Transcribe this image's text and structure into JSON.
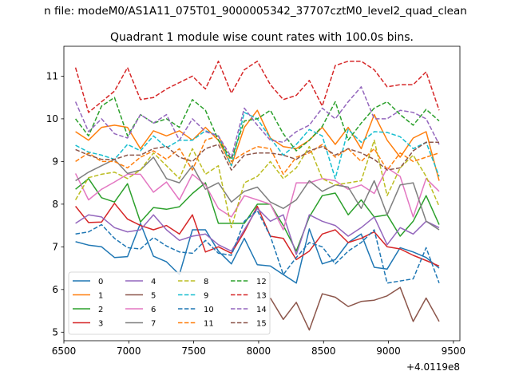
{
  "figure": {
    "suptitle": "n file: modeM0/AS1A11_075T01_9000005342_37707cztM0_level2_quad_clean",
    "offset_label": "+4.0119e8"
  },
  "chart_data": {
    "type": "line",
    "title": "Quadrant 1 module wise count rates with 100.0s bins.",
    "xlabel": "",
    "ylabel": "",
    "xlim": [
      6500,
      9550
    ],
    "ylim": [
      4.8,
      11.7
    ],
    "x_offset": 401190000,
    "xticks": [
      6500,
      7000,
      7500,
      8000,
      8500,
      9000,
      9500
    ],
    "yticks": [
      5,
      6,
      7,
      8,
      9,
      10,
      11
    ],
    "grid": false,
    "legend": {
      "position": "lower-left",
      "columns": 4
    },
    "x": [
      6590,
      6690,
      6790,
      6890,
      6990,
      7090,
      7190,
      7290,
      7390,
      7490,
      7590,
      7690,
      7790,
      7890,
      7990,
      8090,
      8190,
      8290,
      8390,
      8490,
      8590,
      8690,
      8790,
      8890,
      8990,
      9090,
      9190,
      9290,
      9390
    ],
    "series": [
      {
        "name": "0",
        "color": "#1f77b4",
        "dash": "solid",
        "values": [
          7.12,
          7.04,
          7.0,
          6.75,
          6.77,
          7.55,
          6.78,
          6.65,
          6.35,
          7.4,
          7.4,
          6.9,
          6.6,
          7.2,
          6.58,
          6.55,
          6.35,
          6.15,
          7.42,
          6.6,
          6.7,
          7.1,
          7.3,
          6.52,
          6.48,
          6.98,
          6.88,
          6.75,
          6.5
        ]
      },
      {
        "name": "1",
        "color": "#ff7f0e",
        "dash": "solid",
        "values": [
          9.7,
          9.5,
          9.8,
          9.85,
          9.8,
          9.3,
          9.72,
          9.6,
          9.72,
          9.5,
          9.8,
          9.5,
          8.9,
          9.8,
          10.2,
          9.55,
          9.35,
          9.3,
          9.5,
          9.8,
          9.4,
          9.8,
          9.3,
          10.1,
          9.5,
          9.1,
          9.55,
          9.7,
          8.55
        ]
      },
      {
        "name": "2",
        "color": "#2ca02c",
        "dash": "solid",
        "values": [
          8.35,
          8.6,
          8.15,
          8.05,
          8.48,
          7.58,
          7.92,
          7.88,
          7.94,
          8.25,
          8.5,
          7.55,
          7.55,
          7.55,
          8.0,
          8.0,
          7.5,
          6.9,
          7.7,
          8.2,
          8.26,
          7.75,
          8.1,
          7.7,
          7.75,
          7.25,
          7.6,
          8.2,
          7.52
        ]
      },
      {
        "name": "3",
        "color": "#d62728",
        "dash": "solid",
        "values": [
          7.95,
          7.57,
          7.58,
          8.02,
          7.65,
          7.5,
          7.4,
          7.5,
          7.3,
          7.75,
          6.88,
          7.0,
          6.85,
          7.35,
          7.95,
          7.25,
          7.2,
          6.7,
          6.9,
          7.3,
          7.4,
          7.1,
          7.2,
          7.35,
          7.0,
          6.95,
          6.8,
          6.68,
          6.55
        ]
      },
      {
        "name": "4",
        "color": "#9467bd",
        "dash": "solid",
        "values": [
          7.55,
          7.75,
          7.7,
          7.45,
          7.35,
          7.4,
          7.75,
          7.4,
          7.15,
          7.25,
          7.3,
          7.05,
          6.9,
          7.4,
          7.9,
          7.6,
          7.75,
          6.82,
          7.75,
          7.6,
          7.5,
          7.25,
          7.45,
          7.7,
          7.05,
          7.45,
          7.3,
          7.6,
          7.45
        ]
      },
      {
        "name": "5",
        "color": "#8c564b",
        "dash": "solid",
        "values": [
          null,
          null,
          null,
          null,
          null,
          null,
          null,
          null,
          null,
          null,
          null,
          null,
          null,
          null,
          null,
          5.8,
          5.3,
          5.7,
          5.05,
          5.9,
          5.82,
          5.6,
          5.72,
          5.75,
          5.85,
          6.05,
          5.25,
          5.8,
          5.25
        ]
      },
      {
        "name": "6",
        "color": "#e377c2",
        "dash": "solid",
        "values": [
          8.72,
          8.1,
          8.35,
          8.52,
          8.7,
          8.7,
          8.28,
          8.52,
          8.1,
          8.7,
          8.45,
          7.9,
          7.7,
          8.2,
          8.1,
          8.0,
          7.4,
          8.5,
          8.5,
          8.6,
          8.55,
          8.35,
          8.45,
          8.25,
          8.85,
          8.65,
          7.7,
          8.6,
          8.3
        ]
      },
      {
        "name": "7",
        "color": "#7f7f7f",
        "dash": "solid",
        "values": [
          8.55,
          8.75,
          8.9,
          9.05,
          8.72,
          8.8,
          9.1,
          8.6,
          8.5,
          8.9,
          8.35,
          8.5,
          8.05,
          8.3,
          8.4,
          8.05,
          7.9,
          8.1,
          8.55,
          8.3,
          8.45,
          8.4,
          7.9,
          8.55,
          7.75,
          8.45,
          8.5,
          7.6,
          7.4
        ]
      },
      {
        "name": "8",
        "color": "#bcbd22",
        "dash": "dashed",
        "values": [
          8.1,
          8.62,
          8.7,
          8.75,
          8.6,
          8.8,
          9.2,
          8.9,
          8.6,
          9.3,
          8.7,
          8.9,
          7.45,
          8.5,
          8.65,
          9.0,
          8.6,
          8.85,
          9.35,
          8.6,
          8.45,
          8.5,
          8.55,
          9.5,
          8.2,
          8.85,
          9.15,
          8.65,
          7.95
        ]
      },
      {
        "name": "9",
        "color": "#17becf",
        "dash": "dashed",
        "values": [
          9.38,
          9.22,
          9.15,
          9.05,
          9.4,
          9.25,
          9.6,
          9.32,
          9.5,
          9.5,
          9.72,
          9.6,
          8.9,
          10.15,
          10.0,
          9.55,
          9.15,
          9.4,
          9.75,
          9.6,
          8.6,
          9.75,
          9.45,
          9.7,
          9.68,
          9.58,
          9.3,
          9.45,
          8.65
        ]
      },
      {
        "name": "10",
        "color": "#1f77b4",
        "dash": "dashed",
        "values": [
          7.3,
          7.35,
          7.52,
          7.2,
          6.98,
          6.95,
          7.22,
          7.02,
          6.88,
          6.85,
          7.15,
          6.85,
          6.8,
          7.6,
          7.85,
          7.25,
          6.35,
          6.75,
          7.1,
          7.0,
          6.6,
          6.9,
          7.1,
          7.4,
          6.15,
          6.2,
          6.25,
          6.98,
          6.15
        ]
      },
      {
        "name": "11",
        "color": "#ff7f0e",
        "dash": "dashed",
        "values": [
          9.0,
          9.2,
          9.0,
          9.0,
          8.85,
          9.1,
          9.25,
          9.05,
          9.3,
          8.8,
          9.5,
          9.6,
          9.0,
          9.2,
          9.35,
          9.3,
          8.7,
          9.1,
          9.2,
          9.4,
          9.1,
          9.3,
          9.0,
          9.3,
          8.8,
          9.2,
          9.0,
          9.1,
          9.2
        ]
      },
      {
        "name": "12",
        "color": "#2ca02c",
        "dash": "dashed",
        "values": [
          10.0,
          9.6,
          10.3,
          10.5,
          9.6,
          10.1,
          9.9,
          10.0,
          9.8,
          10.45,
          10.2,
          9.5,
          9.05,
          9.95,
          10.0,
          10.2,
          9.65,
          9.25,
          9.5,
          9.82,
          10.4,
          9.5,
          9.9,
          10.25,
          10.4,
          10.1,
          9.85,
          10.22,
          9.95
        ]
      },
      {
        "name": "13",
        "color": "#d62728",
        "dash": "dashed",
        "values": [
          11.2,
          10.15,
          10.4,
          10.65,
          11.2,
          10.45,
          10.5,
          10.7,
          10.85,
          11.0,
          10.7,
          11.35,
          10.6,
          11.15,
          11.35,
          10.8,
          10.45,
          10.55,
          10.9,
          10.3,
          11.25,
          11.35,
          11.35,
          11.15,
          10.75,
          10.8,
          10.8,
          11.1,
          10.2
        ]
      },
      {
        "name": "14",
        "color": "#9467bd",
        "dash": "dashed",
        "values": [
          10.4,
          9.7,
          10.0,
          9.65,
          9.55,
          10.1,
          9.9,
          10.1,
          9.5,
          10.0,
          9.7,
          9.6,
          9.1,
          10.25,
          9.85,
          9.5,
          9.45,
          9.7,
          9.85,
          10.25,
          10.0,
          10.4,
          10.75,
          10.0,
          10.0,
          10.2,
          10.15,
          10.0,
          9.4
        ]
      },
      {
        "name": "15",
        "color": "#8c564b",
        "dash": "dashed",
        "values": [
          9.28,
          9.15,
          9.05,
          9.05,
          9.15,
          9.15,
          9.3,
          9.35,
          9.1,
          9.0,
          9.3,
          9.4,
          8.8,
          9.15,
          9.2,
          9.2,
          9.15,
          9.05,
          9.25,
          9.35,
          9.15,
          9.3,
          9.2,
          9.05,
          8.8,
          8.85,
          9.25,
          9.45,
          9.45
        ]
      }
    ]
  }
}
